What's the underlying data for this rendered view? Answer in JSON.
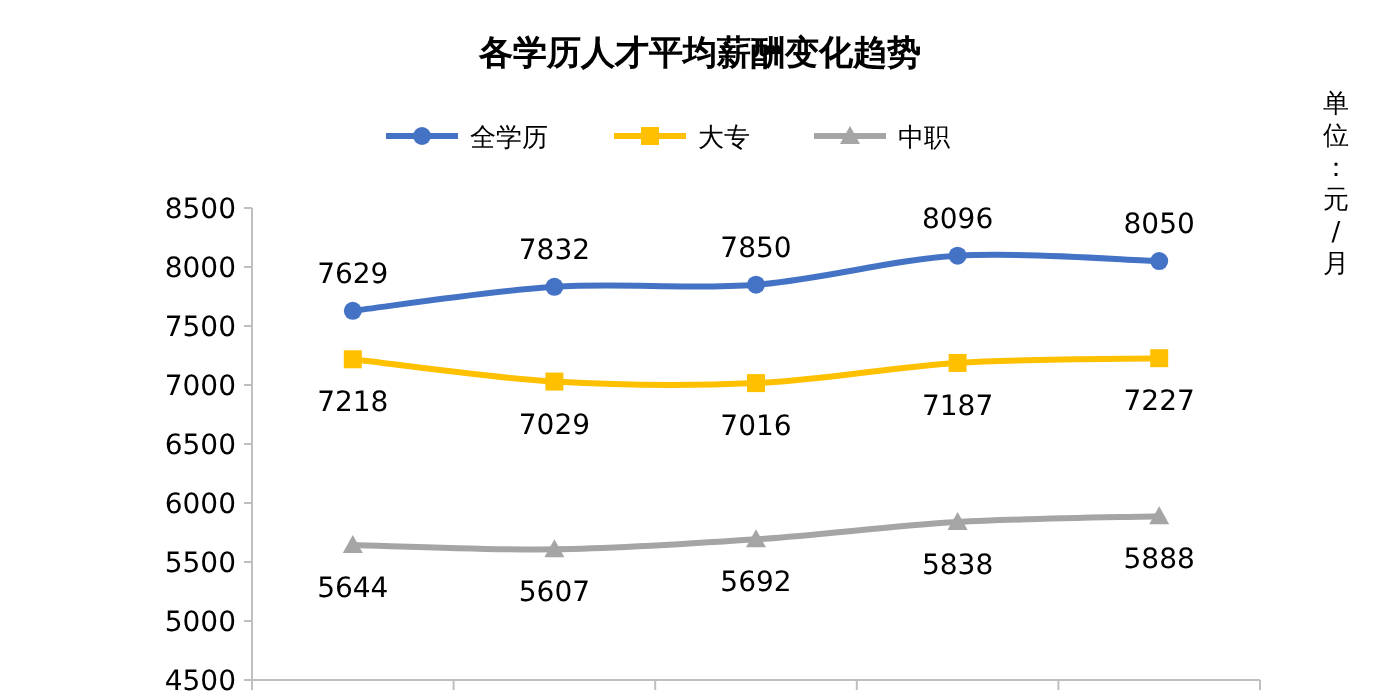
{
  "chart_data": {
    "type": "line",
    "title": "各学历人才平均薪酬变化趋势",
    "ylabel": "单位：元/月",
    "categories": [
      null,
      null,
      null,
      null,
      null
    ],
    "series": [
      {
        "name": "全学历",
        "color": "#4472c4",
        "marker": "circle",
        "values": [
          7629,
          7832,
          7850,
          8096,
          8050
        ]
      },
      {
        "name": "大专",
        "color": "#ffc000",
        "marker": "square",
        "values": [
          7218,
          7029,
          7016,
          7187,
          7227
        ]
      },
      {
        "name": "中职",
        "color": "#a5a5a5",
        "marker": "triangle",
        "values": [
          5644,
          5607,
          5692,
          5838,
          5888
        ]
      }
    ],
    "ylim": [
      4500,
      8500
    ],
    "yticks": [
      4500,
      5000,
      5500,
      6000,
      6500,
      7000,
      7500,
      8000,
      8500
    ],
    "data_labels": true,
    "legend": "top",
    "grid": false
  }
}
